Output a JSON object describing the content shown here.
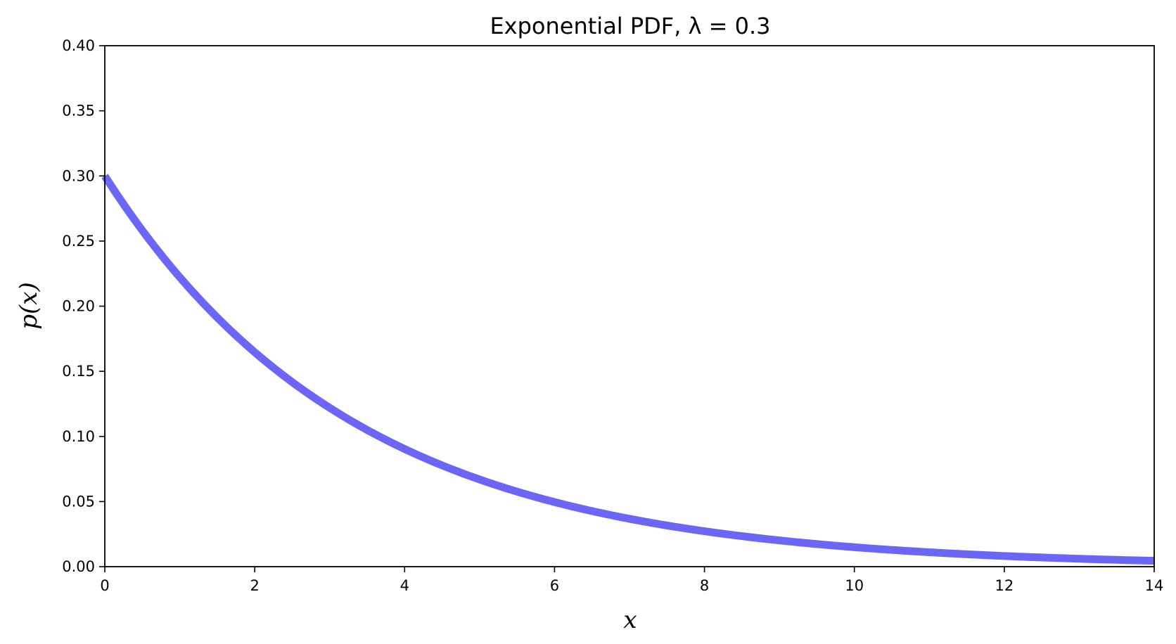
{
  "chart_data": {
    "type": "line",
    "title": "Exponential PDF, λ = 0.3",
    "xlabel": "x",
    "ylabel": "p(x)",
    "xlim": [
      0,
      14
    ],
    "ylim": [
      0,
      0.4
    ],
    "xticks": [
      0,
      2,
      4,
      6,
      8,
      10,
      12,
      14
    ],
    "xtick_labels": [
      "0",
      "2",
      "4",
      "6",
      "8",
      "10",
      "12",
      "14"
    ],
    "yticks": [
      0,
      0.05,
      0.1,
      0.15,
      0.2,
      0.25,
      0.3,
      0.35,
      0.4
    ],
    "ytick_labels": [
      "0.00",
      "0.05",
      "0.10",
      "0.15",
      "0.20",
      "0.25",
      "0.30",
      "0.35",
      "0.40"
    ],
    "grid": false,
    "series": [
      {
        "color": "#6b66f5",
        "x": [
          0,
          1,
          2,
          3,
          4,
          5,
          6,
          7,
          8,
          9,
          10,
          11,
          12,
          13,
          14
        ],
        "y": [
          0.3,
          0.222,
          0.165,
          0.122,
          0.0904,
          0.0669,
          0.0496,
          0.0367,
          0.0272,
          0.0201,
          0.0149,
          0.0111,
          0.0082,
          0.0061,
          0.0045
        ]
      }
    ]
  }
}
